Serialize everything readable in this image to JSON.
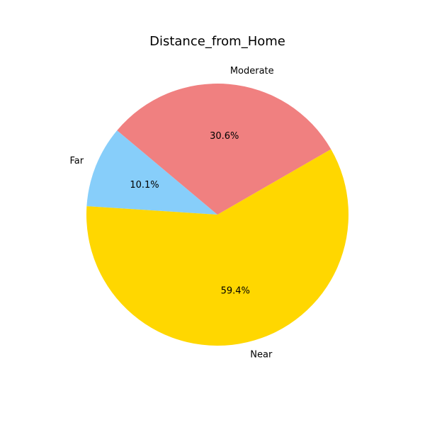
{
  "chart_data": {
    "type": "pie",
    "title": "Distance_from_Home",
    "start_angle_deg": 140,
    "direction": "counterclockwise",
    "slices": [
      {
        "label": "Far",
        "value": 10.1,
        "pct_label": "10.1%",
        "color": "#87CEFA"
      },
      {
        "label": "Near",
        "value": 59.4,
        "pct_label": "59.4%",
        "color": "#FFD700"
      },
      {
        "label": "Moderate",
        "value": 30.6,
        "pct_label": "30.6%",
        "color": "#F08080"
      }
    ]
  }
}
